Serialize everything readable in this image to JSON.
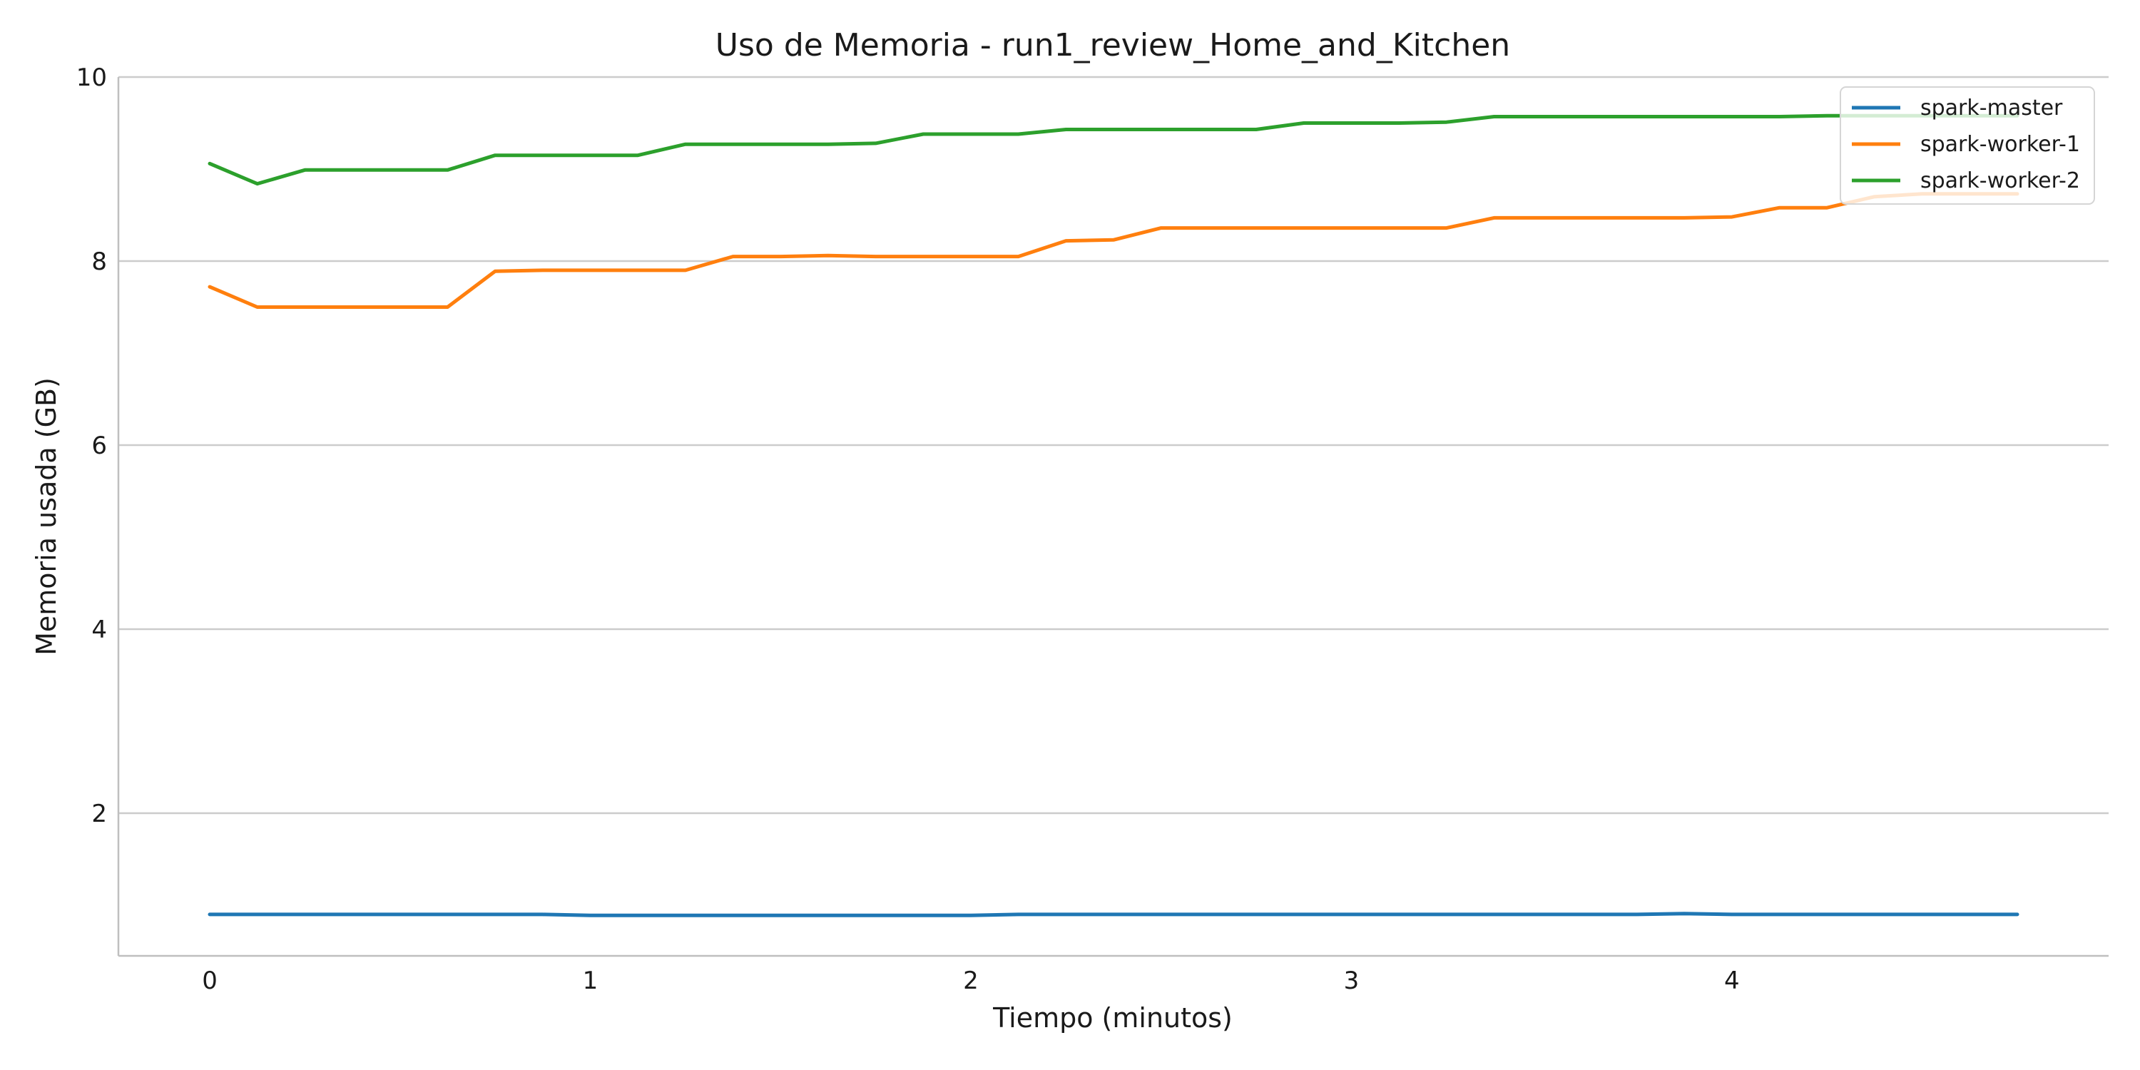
{
  "chart_data": {
    "type": "line",
    "title": "Uso de Memoria - run1_review_Home_and_Kitchen",
    "xlabel": "Tiempo (minutos)",
    "ylabel": "Memoria usada (GB)",
    "xlim": [
      -0.24,
      4.99
    ],
    "ylim": [
      0.45,
      10.0
    ],
    "xticks": [
      0,
      1,
      2,
      3,
      4
    ],
    "yticks": [
      2,
      4,
      6,
      8,
      10
    ],
    "grid": "horizontal",
    "legend_position": "top-right",
    "series": [
      {
        "name": "spark-master",
        "color": "#1f77b4",
        "x": [
          0.0,
          0.125,
          0.25,
          0.375,
          0.5,
          0.625,
          0.75,
          0.875,
          1.0,
          1.125,
          1.25,
          1.375,
          1.5,
          1.625,
          1.75,
          1.875,
          2.0,
          2.125,
          2.25,
          2.375,
          2.5,
          2.625,
          2.75,
          2.875,
          3.0,
          3.125,
          3.25,
          3.375,
          3.5,
          3.625,
          3.75,
          3.875,
          4.0,
          4.125,
          4.25,
          4.375,
          4.5,
          4.625,
          4.75
        ],
        "y": [
          0.9,
          0.9,
          0.9,
          0.9,
          0.9,
          0.9,
          0.9,
          0.9,
          0.89,
          0.89,
          0.89,
          0.89,
          0.89,
          0.89,
          0.89,
          0.89,
          0.89,
          0.9,
          0.9,
          0.9,
          0.9,
          0.9,
          0.9,
          0.9,
          0.9,
          0.9,
          0.9,
          0.9,
          0.9,
          0.9,
          0.9,
          0.91,
          0.9,
          0.9,
          0.9,
          0.9,
          0.9,
          0.9,
          0.9
        ]
      },
      {
        "name": "spark-worker-1",
        "color": "#ff7f0e",
        "x": [
          0.0,
          0.125,
          0.25,
          0.375,
          0.5,
          0.625,
          0.75,
          0.875,
          1.0,
          1.125,
          1.25,
          1.375,
          1.5,
          1.625,
          1.75,
          1.875,
          2.0,
          2.125,
          2.25,
          2.375,
          2.5,
          2.625,
          2.75,
          2.875,
          3.0,
          3.125,
          3.25,
          3.375,
          3.5,
          3.625,
          3.75,
          3.875,
          4.0,
          4.125,
          4.25,
          4.375,
          4.5,
          4.625,
          4.75
        ],
        "y": [
          7.72,
          7.5,
          7.5,
          7.5,
          7.5,
          7.5,
          7.89,
          7.9,
          7.9,
          7.9,
          7.9,
          8.05,
          8.05,
          8.06,
          8.05,
          8.05,
          8.05,
          8.05,
          8.22,
          8.23,
          8.36,
          8.36,
          8.36,
          8.36,
          8.36,
          8.36,
          8.36,
          8.47,
          8.47,
          8.47,
          8.47,
          8.47,
          8.48,
          8.58,
          8.58,
          8.7,
          8.73,
          8.73,
          8.73
        ]
      },
      {
        "name": "spark-worker-2",
        "color": "#2ca02c",
        "x": [
          0.0,
          0.125,
          0.25,
          0.375,
          0.5,
          0.625,
          0.75,
          0.875,
          1.0,
          1.125,
          1.25,
          1.375,
          1.5,
          1.625,
          1.75,
          1.875,
          2.0,
          2.125,
          2.25,
          2.375,
          2.5,
          2.625,
          2.75,
          2.875,
          3.0,
          3.125,
          3.25,
          3.375,
          3.5,
          3.625,
          3.75,
          3.875,
          4.0,
          4.125,
          4.25,
          4.375,
          4.5,
          4.625,
          4.75
        ],
        "y": [
          9.06,
          8.84,
          8.99,
          8.99,
          8.99,
          8.99,
          9.15,
          9.15,
          9.15,
          9.15,
          9.27,
          9.27,
          9.27,
          9.27,
          9.28,
          9.38,
          9.38,
          9.38,
          9.43,
          9.43,
          9.43,
          9.43,
          9.43,
          9.5,
          9.5,
          9.5,
          9.51,
          9.57,
          9.57,
          9.57,
          9.57,
          9.57,
          9.57,
          9.57,
          9.58,
          9.58,
          9.58,
          9.58,
          9.58
        ]
      }
    ]
  }
}
